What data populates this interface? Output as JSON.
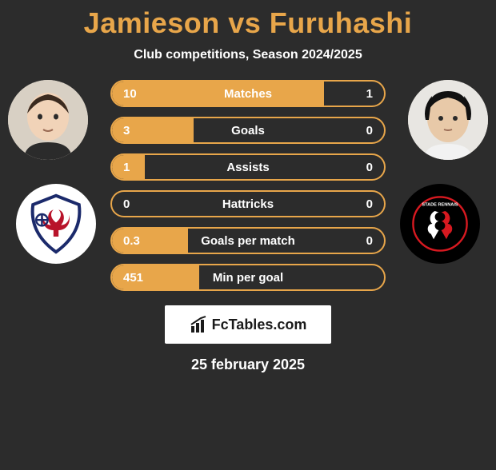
{
  "title": "Jamieson vs Furuhashi",
  "subtitle": "Club competitions, Season 2024/2025",
  "date": "25 february 2025",
  "footer_brand": "FcTables.com",
  "accent_color": "#e8a64a",
  "background_color": "#2c2c2c",
  "text_color": "#ffffff",
  "rows": [
    {
      "label": "Matches",
      "left": "10",
      "right": "1",
      "left_pct": 78,
      "right_pct": 0
    },
    {
      "label": "Goals",
      "left": "3",
      "right": "0",
      "left_pct": 30,
      "right_pct": 0
    },
    {
      "label": "Assists",
      "left": "1",
      "right": "0",
      "left_pct": 12,
      "right_pct": 0
    },
    {
      "label": "Hattricks",
      "left": "0",
      "right": "0",
      "left_pct": 0,
      "right_pct": 0
    },
    {
      "label": "Goals per match",
      "left": "0.3",
      "right": "0",
      "left_pct": 28,
      "right_pct": 0
    },
    {
      "label": "Min per goal",
      "left": "451",
      "right": "",
      "left_pct": 32,
      "right_pct": 0
    }
  ],
  "players": {
    "left": {
      "name": "Jamieson",
      "skin": "#f1d3b8",
      "hair": "#3a2a1f"
    },
    "right": {
      "name": "Furuhashi",
      "skin": "#e8c9a8",
      "hair": "#111111"
    }
  },
  "clubs": {
    "left": {
      "name": "raith-rovers",
      "primary": "#1b2a6b",
      "accent": "#b8132a"
    },
    "right": {
      "name": "stade-rennais",
      "primary": "#000000",
      "accent": "#d71920",
      "text": "STADE RENNAIS"
    }
  }
}
